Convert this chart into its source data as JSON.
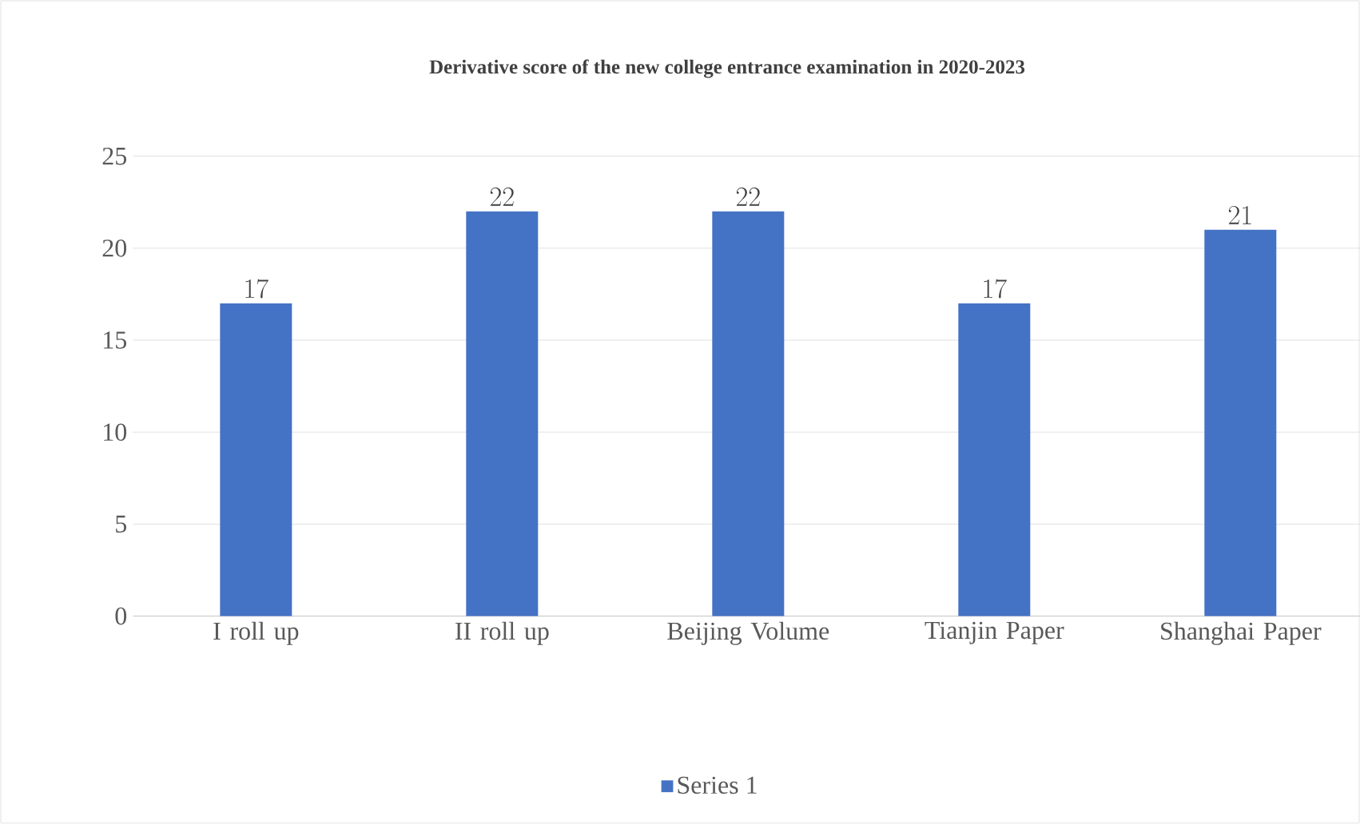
{
  "chart_data": {
    "type": "bar",
    "title": "Derivative score of the new college entrance examination in 2020-2023",
    "categories": [
      "I roll up",
      "II roll up",
      "Beijing Volume",
      "Tianjin Paper",
      "Shanghai Paper"
    ],
    "series": [
      {
        "name": "Series 1",
        "color": "#4472c4",
        "values": [
          17,
          22,
          22,
          17,
          21
        ]
      }
    ],
    "ylim": [
      0,
      25
    ],
    "yticks": [
      0,
      5,
      10,
      15,
      20,
      25
    ],
    "grid": "y",
    "legend": "bottom",
    "data_labels": true
  }
}
